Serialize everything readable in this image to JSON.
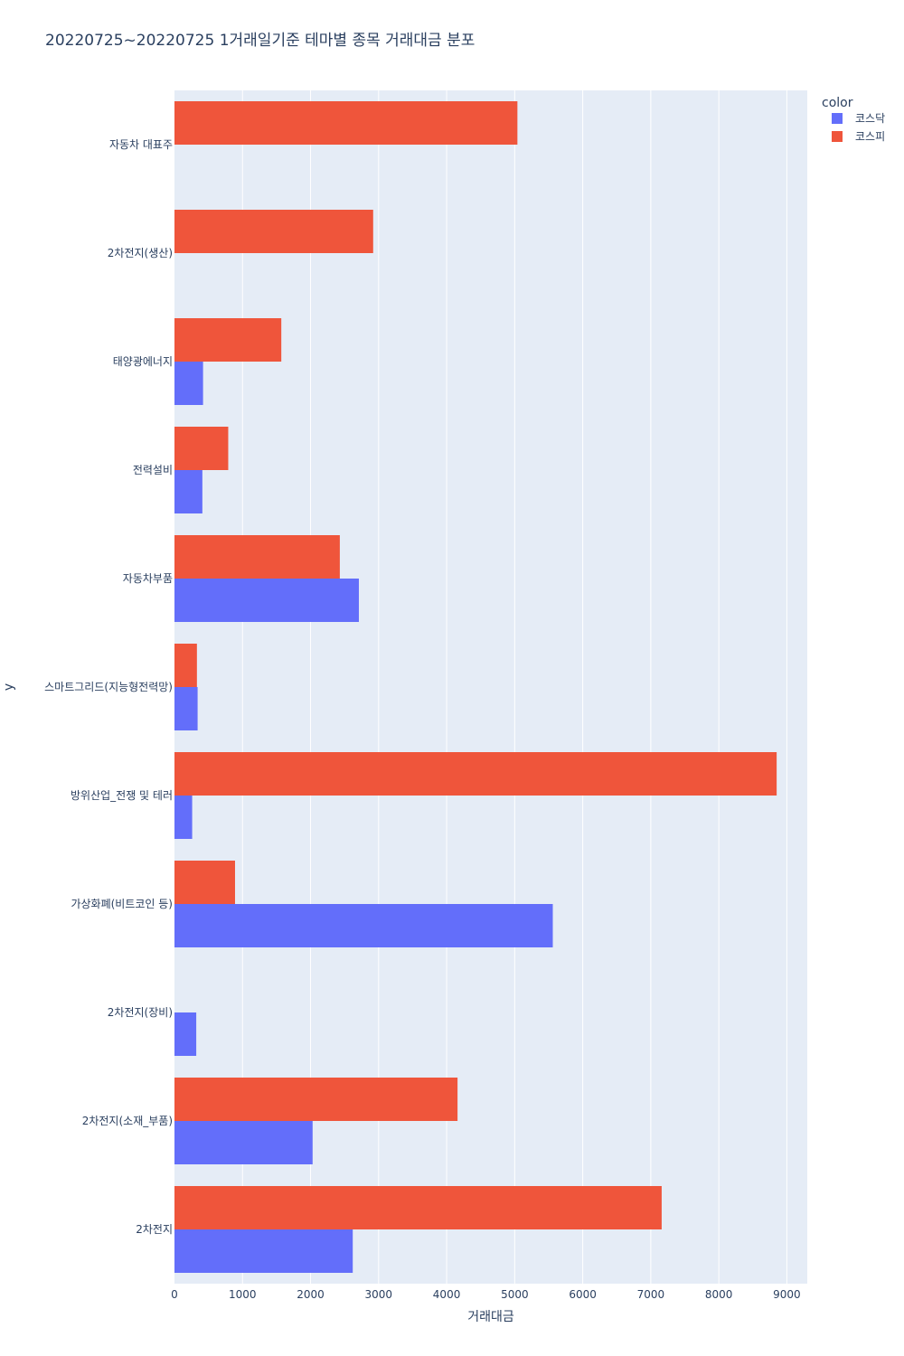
{
  "chart_data": {
    "type": "bar",
    "orientation": "horizontal",
    "title": "20220725~20220725 1거래일기준 테마별 종목 거래대금 분포",
    "xlabel": "거래대금",
    "ylabel": "y",
    "xlim": [
      0,
      9300
    ],
    "xticks": [
      0,
      1000,
      2000,
      3000,
      4000,
      5000,
      6000,
      7000,
      8000,
      9000
    ],
    "grid": true,
    "legend": {
      "title": "color",
      "position": "top-right",
      "items": [
        {
          "name": "코스닥",
          "color": "#636efa"
        },
        {
          "name": "코스피",
          "color": "#ef553b"
        }
      ]
    },
    "categories": [
      "자동차 대표주",
      "2차전지(생산)",
      "태양광에너지",
      "전력설비",
      "자동차부품",
      "스마트그리드(지능형전력망)",
      "방위산업_전쟁 및 테러",
      "가상화폐(비트코인 등)",
      "2차전지(장비)",
      "2차전지(소재_부품)",
      "2차전지"
    ],
    "series": [
      {
        "name": "코스닥",
        "color": "#636efa",
        "values": [
          0,
          0,
          420,
          410,
          2710,
          340,
          260,
          5560,
          320,
          2030,
          2620
        ]
      },
      {
        "name": "코스피",
        "color": "#ef553b",
        "values": [
          5040,
          2920,
          1570,
          790,
          2430,
          330,
          8850,
          890,
          0,
          4160,
          7160
        ]
      }
    ]
  }
}
